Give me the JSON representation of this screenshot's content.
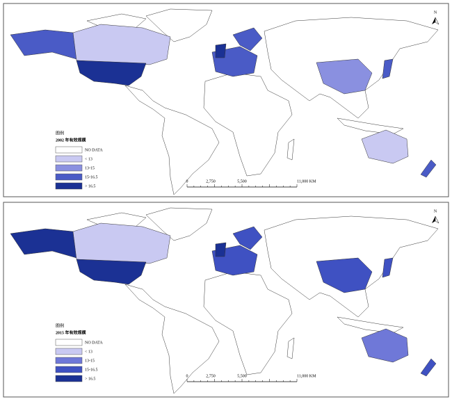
{
  "panels": [
    {
      "legend": {
        "heading": "图例",
        "title": "2002 年有效规模",
        "items": [
          {
            "label": "NO DATA",
            "color": "#ffffff"
          },
          {
            "label": "< 13",
            "color": "#c9c9f2"
          },
          {
            "label": "13-15",
            "color": "#8a90e0"
          },
          {
            "label": "15-16.5",
            "color": "#4a5bc6"
          },
          {
            "label": "> 16.5",
            "color": "#1b3194"
          }
        ]
      },
      "scale_bar": [
        "0",
        "2,750",
        "5,500",
        "11,000 KM"
      ],
      "north": "N"
    },
    {
      "legend": {
        "heading": "图例",
        "title": "2015 年有效规模",
        "items": [
          {
            "label": "NO DATA",
            "color": "#ffffff"
          },
          {
            "label": "< 13",
            "color": "#c9c9f2"
          },
          {
            "label": "13-15",
            "color": "#6f78d8"
          },
          {
            "label": "15-16.5",
            "color": "#3f51c2"
          },
          {
            "label": "> 16.5",
            "color": "#1b3194"
          }
        ]
      },
      "scale_bar": [
        "0",
        "2,750",
        "5,500",
        "11,000 KM"
      ],
      "north": "N"
    }
  ]
}
